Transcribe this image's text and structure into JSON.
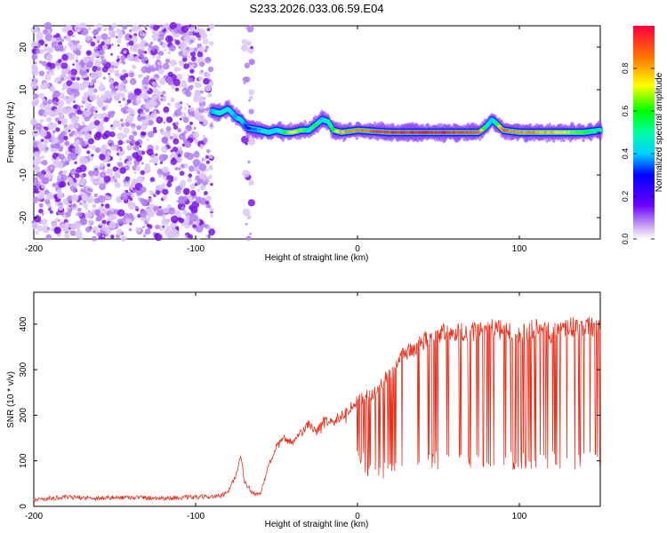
{
  "title": "S233.2026.033.06.59.E04",
  "colors": {
    "scatter": "#8a2be2",
    "snr_line": "#e8301c",
    "axis": "#000000"
  },
  "chart_data": [
    {
      "type": "heatmap",
      "title": "S233.2026.033.06.59.E04",
      "xlabel": "Height of straight line (km)",
      "ylabel": "Frequency (Hz)",
      "xlim": [
        -200,
        150
      ],
      "ylim": [
        -25,
        25
      ],
      "xticks": [
        -200,
        -100,
        0,
        100
      ],
      "yticks": [
        -20,
        -10,
        0,
        10,
        20
      ],
      "xtick_labels": [
        "-200",
        "-100",
        "0",
        "100"
      ],
      "ytick_labels": [
        "-20",
        "-10",
        "0",
        "10",
        "20"
      ],
      "colorbar": {
        "label": "Normalized spectral amplitude",
        "range": [
          0.0,
          1.0
        ],
        "ticks": [
          0.0,
          0.2,
          0.4,
          0.6,
          0.8
        ],
        "tick_labels": [
          "0.0",
          "0.2",
          "0.4",
          "0.6",
          "0.8"
        ]
      },
      "noise_regions": [
        {
          "x_from": -200,
          "x_to": -90,
          "freq_from": -25,
          "freq_to": 25,
          "amplitude": 0.1
        },
        {
          "x_from": -70,
          "x_to": -65,
          "freq_from": -25,
          "freq_to": 25,
          "amplitude": 0.05
        }
      ],
      "signal_track": {
        "x": [
          -90,
          -85,
          -80,
          -75,
          -72,
          -68,
          -60,
          -55,
          -50,
          -45,
          -40,
          -35,
          -30,
          -25,
          -22,
          -18,
          -15,
          -10,
          0,
          20,
          40,
          60,
          75,
          80,
          83,
          86,
          90,
          100,
          120,
          140,
          150
        ],
        "freq": [
          5,
          4.5,
          5.5,
          3.5,
          3,
          1,
          0.5,
          0,
          0.5,
          0,
          0,
          0.5,
          0.5,
          2,
          3,
          2.5,
          0.5,
          0,
          0.5,
          0,
          0,
          0,
          0,
          1.5,
          3,
          2,
          0.5,
          0,
          0,
          0,
          0.5
        ],
        "amplitude": [
          0.4,
          0.5,
          0.45,
          0.4,
          0.45,
          0.3,
          0.4,
          0.5,
          0.4,
          0.6,
          0.8,
          0.7,
          0.5,
          0.6,
          0.4,
          0.5,
          0.6,
          0.8,
          0.85,
          0.95,
          1.0,
          0.95,
          0.9,
          0.5,
          0.4,
          0.6,
          0.9,
          0.85,
          0.8,
          0.6,
          0.5
        ]
      }
    },
    {
      "type": "line",
      "xlabel": "Height of straight line (km)",
      "ylabel": "SNR (10 * v/v)",
      "xlim": [
        -200,
        150
      ],
      "ylim": [
        0,
        470
      ],
      "xticks": [
        -200,
        -100,
        0,
        100
      ],
      "yticks": [
        0,
        100,
        200,
        300,
        400
      ],
      "xtick_labels": [
        "-200",
        "-100",
        "0",
        "100"
      ],
      "ytick_labels": [
        "0",
        "100",
        "200",
        "300",
        "400"
      ],
      "series": [
        {
          "name": "SNR",
          "x": [
            -200,
            -180,
            -160,
            -140,
            -120,
            -100,
            -85,
            -80,
            -75,
            -72,
            -70,
            -65,
            -60,
            -55,
            -50,
            -45,
            -40,
            -35,
            -30,
            -25,
            -20,
            -15,
            -10,
            -5,
            0,
            5,
            10,
            15,
            20,
            25,
            30,
            35,
            40,
            45,
            50,
            60,
            70,
            80,
            90,
            100,
            110,
            120,
            130,
            140,
            150
          ],
          "values": [
            15,
            20,
            18,
            20,
            18,
            20,
            22,
            30,
            70,
            110,
            55,
            30,
            25,
            90,
            130,
            150,
            140,
            160,
            180,
            165,
            190,
            185,
            200,
            215,
            235,
            240,
            250,
            270,
            290,
            320,
            340,
            345,
            360,
            370,
            380,
            385,
            380,
            390,
            385,
            380,
            390,
            380,
            395,
            395,
            390
          ],
          "spike_min": [
            15,
            15,
            15,
            15,
            15,
            15,
            15,
            20,
            40,
            60,
            30,
            15,
            15,
            60,
            100,
            120,
            110,
            120,
            150,
            140,
            160,
            160,
            170,
            180,
            100,
            70,
            50,
            60,
            60,
            70,
            60,
            70,
            70,
            80,
            80,
            80,
            80,
            80,
            80,
            80,
            80,
            80,
            80,
            80,
            80
          ]
        }
      ]
    }
  ]
}
